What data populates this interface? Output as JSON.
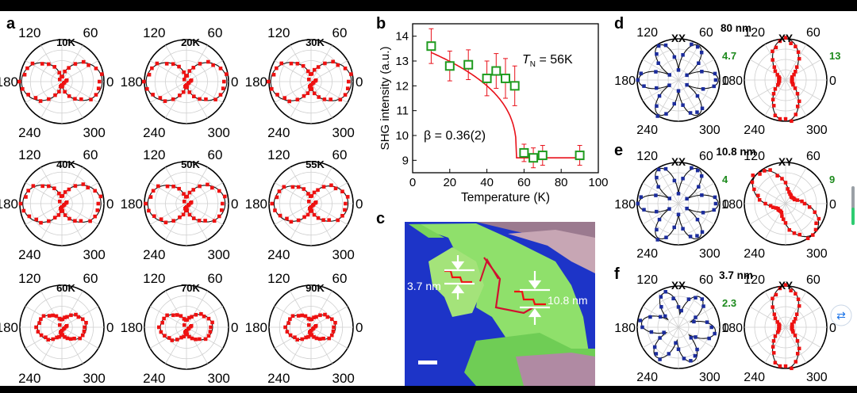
{
  "panel_labels": [
    "a",
    "b",
    "c",
    "d",
    "e",
    "f"
  ],
  "polar_angle_labels": [
    "120",
    "60",
    "180",
    "0",
    "240",
    "300"
  ],
  "panel_a": {
    "temps": [
      "10K",
      "20K",
      "30K",
      "40K",
      "50K",
      "55K",
      "60K",
      "70K",
      "90K"
    ],
    "lobe": [
      {
        "ax": 0.96,
        "ay": 0.13
      },
      {
        "ax": 0.96,
        "ay": 0.16
      },
      {
        "ax": 0.96,
        "ay": 0.22
      },
      {
        "ax": 0.93,
        "ay": 0.22
      },
      {
        "ax": 0.92,
        "ay": 0.2
      },
      {
        "ax": 0.88,
        "ay": 0.22
      },
      {
        "ax": 0.58,
        "ay": 0.24
      },
      {
        "ax": 0.62,
        "ay": 0.22
      },
      {
        "ax": 0.58,
        "ay": 0.24
      }
    ]
  },
  "panel_b": {
    "chart_data": {
      "type": "scatter",
      "xlabel": "Temperature (K)",
      "ylabel": "SHG intensity (a.u.)",
      "xlim": [
        0,
        100
      ],
      "ylim": [
        8.5,
        14.5
      ],
      "xticks": [
        0,
        20,
        40,
        60,
        80,
        100
      ],
      "yticks": [
        9,
        10,
        11,
        12,
        13,
        14
      ],
      "points": [
        {
          "x": 10,
          "y": 13.6,
          "err": 0.7
        },
        {
          "x": 20,
          "y": 12.8,
          "err": 0.6
        },
        {
          "x": 30,
          "y": 12.85,
          "err": 0.6
        },
        {
          "x": 40,
          "y": 12.3,
          "err": 0.7
        },
        {
          "x": 45,
          "y": 12.6,
          "err": 0.7
        },
        {
          "x": 50,
          "y": 12.3,
          "err": 0.8
        },
        {
          "x": 55,
          "y": 12.0,
          "err": 0.8
        },
        {
          "x": 60,
          "y": 9.3,
          "err": 0.35
        },
        {
          "x": 65,
          "y": 9.1,
          "err": 0.4
        },
        {
          "x": 70,
          "y": 9.2,
          "err": 0.4
        },
        {
          "x": 90,
          "y": 9.2,
          "err": 0.4
        }
      ],
      "fit": {
        "Tn": 56,
        "beta": 0.36,
        "low": 9.1,
        "amp": 4.6
      },
      "annotations": {
        "tn_T": "T",
        "tn_sub": "N",
        "tn_val": " = 56K",
        "beta": "β = 0.36(2)"
      },
      "colors": {
        "marker": "#1f9b1f",
        "fit": "#e8111a",
        "err": "#e8111a"
      }
    }
  },
  "panel_c": {
    "label_left": "3.7 nm",
    "label_right": "10.8 nm"
  },
  "panel_def": [
    {
      "xx": "XX",
      "xy": "XY",
      "thickness": "80 nm",
      "xx_max": "4.7",
      "xy_max": "13",
      "xx_shape": "star6",
      "xy_shape": "vertical"
    },
    {
      "xx": "XX",
      "xy": "XY",
      "thickness": "10.8 nm",
      "xx_max": "4",
      "xy_max": "9",
      "xx_shape": "star6",
      "xy_shape": "diag"
    },
    {
      "xx": "XX",
      "xy": "XY",
      "thickness": "3.7 nm",
      "xx_max": "2.3",
      "xy_max": "",
      "xx_shape": "star6b",
      "xy_shape": "vertical"
    }
  ],
  "colors": {
    "blue": "#1b2c9c",
    "red": "#ee1111",
    "green": "#1d8a1d",
    "sky": "#1d34c8"
  }
}
